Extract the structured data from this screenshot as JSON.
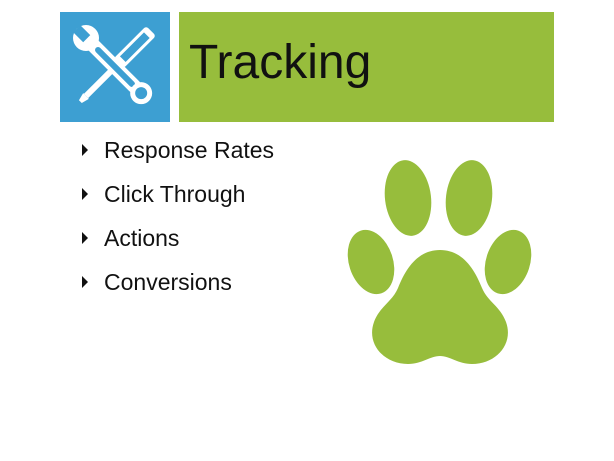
{
  "slide": {
    "title": "Tracking",
    "header_icon": "wrench-screwdriver-icon",
    "illustration": "paw-print-icon",
    "colors": {
      "title_bar": "#97bd3c",
      "icon_tile": "#3d9fd2",
      "paw": "#97bd3c"
    },
    "bullets": [
      "Response Rates",
      "Click Through",
      "Actions",
      "Conversions"
    ]
  }
}
